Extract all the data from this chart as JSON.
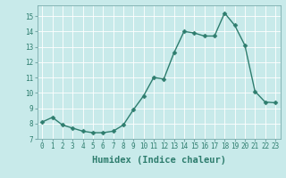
{
  "x": [
    0,
    1,
    2,
    3,
    4,
    5,
    6,
    7,
    8,
    9,
    10,
    11,
    12,
    13,
    14,
    15,
    16,
    17,
    18,
    19,
    20,
    21,
    22,
    23
  ],
  "y": [
    8.1,
    8.4,
    7.9,
    7.7,
    7.5,
    7.4,
    7.4,
    7.5,
    7.9,
    8.9,
    9.8,
    11.0,
    10.9,
    12.6,
    14.0,
    13.9,
    13.7,
    13.7,
    15.2,
    14.4,
    13.1,
    10.1,
    9.4,
    9.35
  ],
  "line_color": "#2e7d6e",
  "marker": "D",
  "marker_size": 2.5,
  "bg_color": "#c8eaea",
  "grid_color": "#ffffff",
  "xlabel": "Humidex (Indice chaleur)",
  "ylabel": "",
  "xlim": [
    -0.5,
    23.5
  ],
  "ylim": [
    7,
    15.7
  ],
  "yticks": [
    7,
    8,
    9,
    10,
    11,
    12,
    13,
    14,
    15
  ],
  "xticks": [
    0,
    1,
    2,
    3,
    4,
    5,
    6,
    7,
    8,
    9,
    10,
    11,
    12,
    13,
    14,
    15,
    16,
    17,
    18,
    19,
    20,
    21,
    22,
    23
  ],
  "tick_label_size": 5.5,
  "xlabel_size": 7.5,
  "line_width": 1.0,
  "marker_color": "#2e7d6e"
}
